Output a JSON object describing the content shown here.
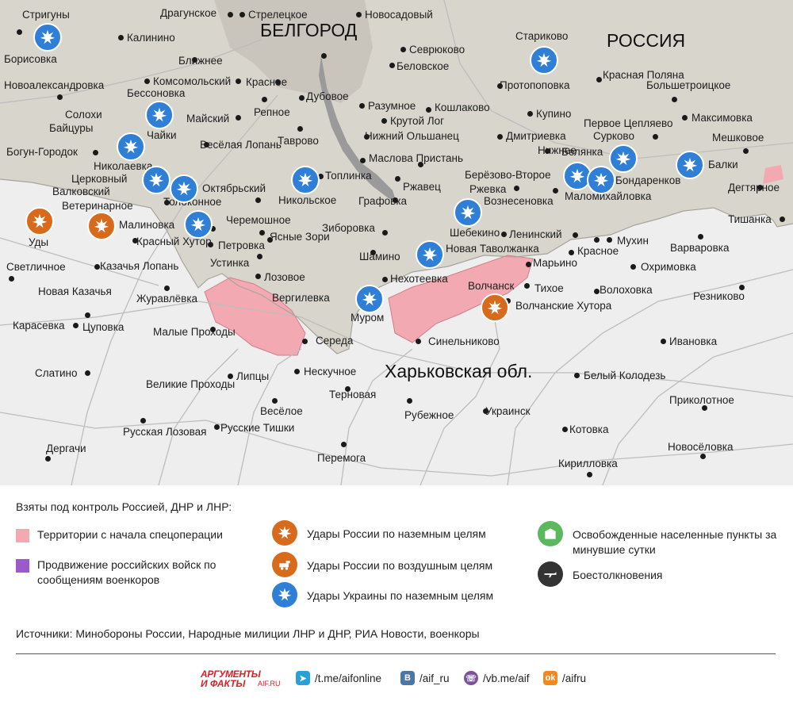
{
  "region_labels": {
    "russia": "РОССИЯ",
    "belgorod": "БЕЛГОРОД",
    "kharkiv_oblast": "Харьковская обл."
  },
  "places": {
    "strigunу": "Стригуны",
    "dragunskoe": "Драгунское",
    "streletskoe": "Стрелецкое",
    "novosadovy": "Новосадовый",
    "kalinino": "Калинино",
    "sevryukovo": "Севрюково",
    "starikovo": "Стариково",
    "borisovka": "Борисовка",
    "belovskoe": "Беловское",
    "blizhnee": "Ближнее",
    "novoaleksandrovka": "Новоалександровка",
    "komsomolsky": "Комсомольский",
    "krasnoe_n": "Красное",
    "protopopovka": "Протопоповка",
    "krasnaya_polyana": "Красная Поляна",
    "bolshetroitskoe": "Большетроицкое",
    "bessonovka": "Бессоновка",
    "dubovoe": "Дубовое",
    "razumnoe": "Разумное",
    "koshlakovo": "Кошлаково",
    "solokhi": "Солохи",
    "repnoe": "Репное",
    "mayskiy": "Майский",
    "kupino": "Купино",
    "krutoy_log": "Крутой Лог",
    "baytsury": "Байцуры",
    "pervoe_tseplyaevo": "Первое Цепляево",
    "maksimovka": "Максимовка",
    "chayki": "Чайки",
    "tavrovo": "Таврово",
    "nizhny_olshanets": "Нижний Ольшанец",
    "dmitrievka": "Дмитриевка",
    "surkovo": "Сурково",
    "veselaya_lopan": "Весёлая Лопань",
    "bogun_gorodok": "Богун-Городок",
    "nizhnee": "Нижнее",
    "meshkovoe": "Мешковое",
    "maslova_pristan": "Маслова Пристань",
    "belyanka": "Белянка",
    "nikolaevka": "Николаевка",
    "toplinka": "Топлинка",
    "berezovo_vtoroe": "Берёзово-Второе",
    "balki": "Балки",
    "tserkovny": "Церковный",
    "rzhavets": "Ржавец",
    "bondarenkov": "Бондаренков",
    "oktyabrsky": "Октябрьский",
    "nikolskoe": "Никольское",
    "rzhevka": "Ржевка",
    "degtyarnoe": "Дегтярное",
    "valkovsky": "Валковский",
    "malomikhaylovka": "Маломихайловка",
    "tolokonnoe": "Толоконное",
    "grafovka": "Графовка",
    "voznesenovka": "Вознесеновка",
    "veterinarnoe": "Ветеринарное",
    "tishanka": "Тишанка",
    "cheremoshnoe": "Черемошное",
    "shebekino": "Шебекино",
    "malinovka": "Малиновка",
    "udy": "Уды",
    "ziborovka": "Зиборовка",
    "leninsky": "Ленинский",
    "mukhin": "Мухин",
    "yasnye_zori": "Ясные Зори",
    "krasny_khutor": "Красный Хутор",
    "petrovka": "Петровка",
    "varvarovka": "Варваровка",
    "krasnoe_s": "Красное",
    "novaya_tavolzhanka": "Новая Таволжанка",
    "shamino": "Шамино",
    "ustinka": "Устинка",
    "okhrimovka": "Охримовка",
    "svetlichnoe": "Светличное",
    "kazachya_lopan": "Казачья Лопань",
    "maryno": "Марьино",
    "lozovoe": "Лозовое",
    "nekhoteevka": "Нехотеевка",
    "novaya_kazachya": "Новая Казачья",
    "volchansk": "Волчанск",
    "tikhoe": "Тихое",
    "volokhovka": "Волоховка",
    "reznikovo": "Резниково",
    "zhuravlevka": "Журавлёвка",
    "vergilevka": "Вергилевка",
    "volchanskie_khutora": "Волчанские Хутора",
    "murom": "Муром",
    "karasevka": "Карасевка",
    "tsupovka": "Цуповка",
    "malye_prokhody": "Малые Проходы",
    "sinelnikovo": "Синельниково",
    "ivanovka": "Ивановка",
    "sereda": "Середа",
    "neskuchnoe": "Нескучное",
    "slatino": "Слатино",
    "belyy_kolodez": "Белый Колодезь",
    "lipcy": "Липцы",
    "velikie_prokhody": "Великие Проходы",
    "ternovaya": "Терновая",
    "prikolotnoe": "Приколотное",
    "veseloe": "Весёлое",
    "rubezhnoe": "Рубежное",
    "ukrainsk": "Украинск",
    "russkie_tishki": "Русские Тишки",
    "russkaya_lozovaya": "Русская Лозовая",
    "kotovka": "Котовка",
    "novoselovka": "Новосёловка",
    "dergachi": "Дергачи",
    "peremoga": "Перемога",
    "kirillovka": "Кирилловка"
  },
  "legend": {
    "title": "Взяты под контроль Россией, ДНР и ЛНР:",
    "territory": "Территории с начала спецоперации",
    "advance": "Продвижение российских войск по сообщениям военкоров",
    "ru_ground": "Удары России по наземным целям",
    "ru_air": "Удары России по воздушным целям",
    "ua_ground": "Удары Украины по наземным целям",
    "liberated": "Освобожденные населенные пункты за минувшие сутки",
    "clashes": "Боестолкновения",
    "colors": {
      "territory": "#f2a9b1",
      "advance": "#9b59c9",
      "ru_strike": "#d86a1c",
      "ua_strike": "#2f7fd6",
      "liberated": "#5cb85c",
      "clashes": "#333333"
    }
  },
  "sources": "Источники: Минобороны России, Народные милиции ЛНР и ДНР, РИА Новости, военкоры",
  "footer": {
    "logo_line1": "АРГУМЕНТЫ",
    "logo_line2": "И ФАКТЫ",
    "logo_site": "AIF.RU",
    "telegram": "/t.me/aifonline",
    "vk": "/aif_ru",
    "viber": "/vb.me/aif",
    "ok": "/aifru"
  }
}
